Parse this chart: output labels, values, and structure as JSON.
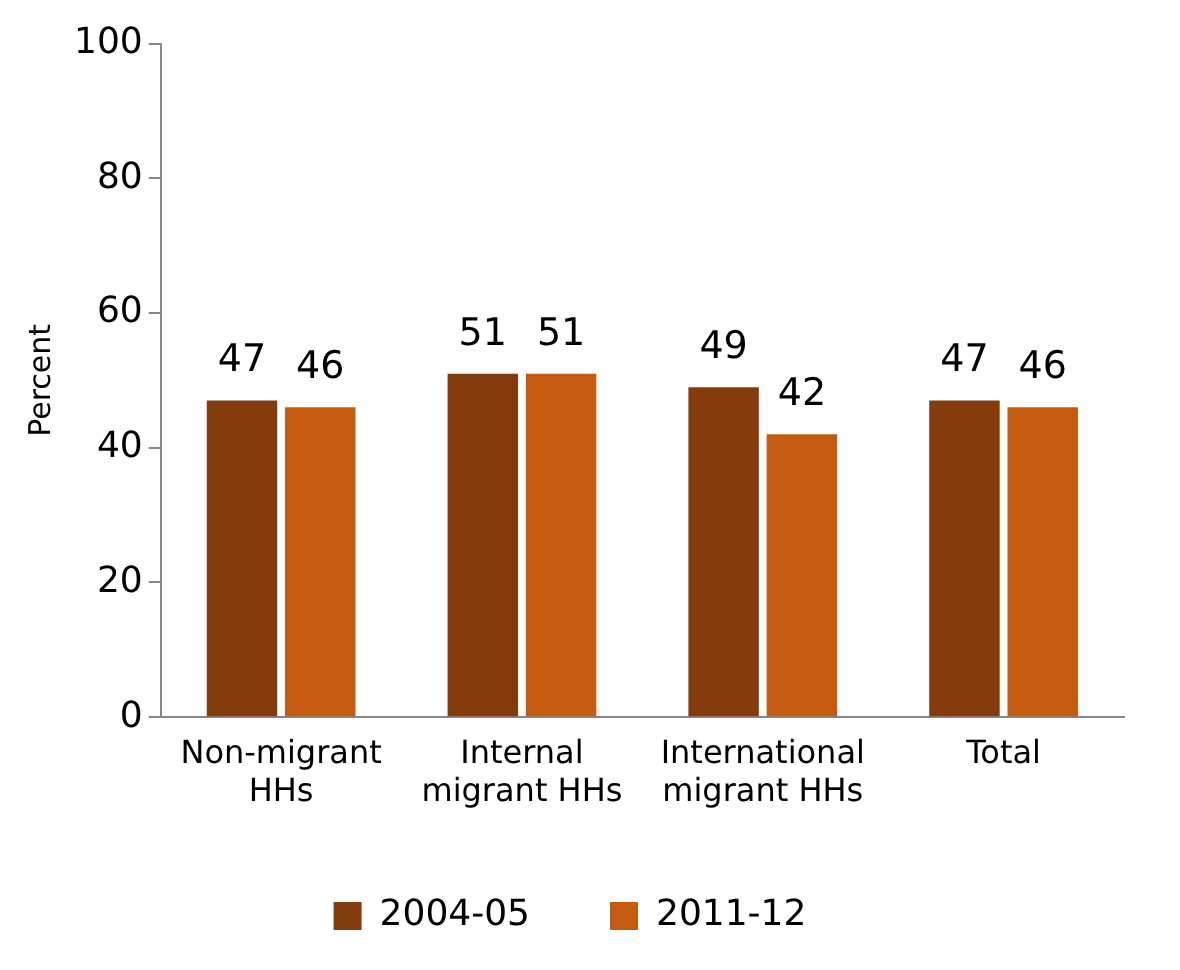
{
  "chart_data": {
    "type": "bar",
    "ylabel": "Percent",
    "categories": [
      "Non-migrant HHs",
      "Internal migrant HHs",
      "International migrant HHs",
      "Total"
    ],
    "series": [
      {
        "name": "2004-05",
        "color": "#843c0c",
        "values": [
          47,
          51,
          49,
          47
        ]
      },
      {
        "name": "2011-12",
        "color": "#c55a11",
        "values": [
          46,
          51,
          42,
          46
        ]
      }
    ],
    "ylim": [
      0,
      100
    ],
    "yticks": [
      0,
      20,
      40,
      60,
      80,
      100
    ],
    "grid": false,
    "legend": "bottom",
    "data_labels": true
  }
}
